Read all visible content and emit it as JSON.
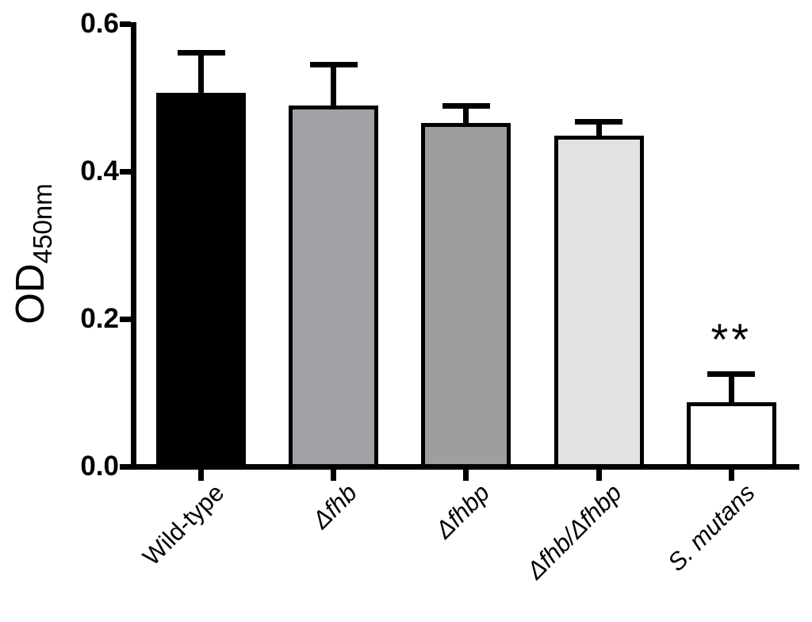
{
  "figure": {
    "background_color": "#FFFFFF",
    "axis_color": "#000000",
    "text_color": "#000000"
  },
  "chart_data": {
    "type": "bar",
    "title": "",
    "xlabel": "",
    "ylabel_main": "OD",
    "ylabel_subscript": "450nm",
    "ylim": [
      0.0,
      0.6
    ],
    "ytick_labels": [
      "0.0",
      "0.2",
      "0.4",
      "0.6"
    ],
    "ytick_values": [
      0.0,
      0.2,
      0.4,
      0.6
    ],
    "grid": false,
    "legend_position": "none",
    "categories": [
      "Wild-type",
      "Δfhb",
      "Δfhbp",
      "Δfhb/Δfhbp",
      "S. mutans"
    ],
    "categories_italic": [
      false,
      true,
      true,
      true,
      true
    ],
    "values": [
      0.506,
      0.489,
      0.466,
      0.448,
      0.087
    ],
    "errors_sd_upper": [
      0.059,
      0.059,
      0.026,
      0.023,
      0.042
    ],
    "bar_fill_colors": [
      "#000000",
      "#A1A2A6",
      "#9E9E9E",
      "#E2E2E2",
      "#FFFFFF"
    ],
    "bar_border_color": "#000000",
    "annotations": [
      {
        "text": "**",
        "category_index": 4
      }
    ]
  }
}
